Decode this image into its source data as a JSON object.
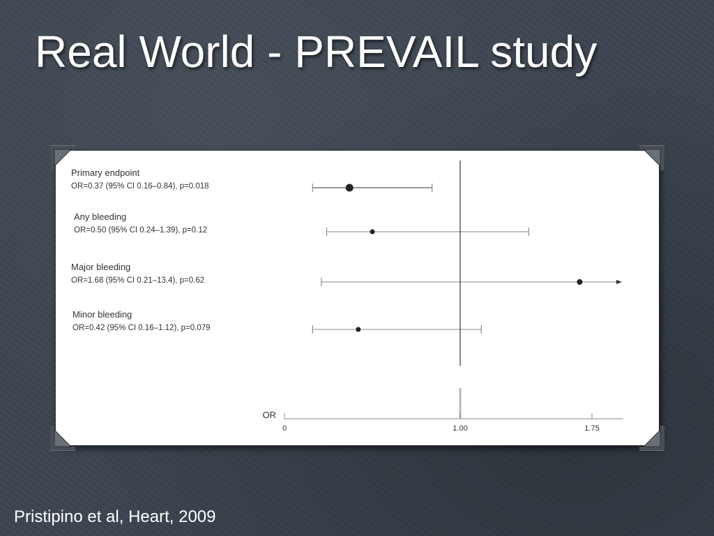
{
  "slide": {
    "title": "Real World - PREVAIL study",
    "caption": "Pristipino et al, Heart, 2009"
  },
  "colors": {
    "background": "#3c4550",
    "frame": "#ffffff",
    "ink": "#333333",
    "whisker": "#8a8a8a"
  },
  "chart_data": {
    "type": "scatter",
    "title": "",
    "xlabel": "OR",
    "ylabel": "",
    "xlim": [
      0,
      1.92
    ],
    "reference_line": 1.0,
    "ticks": [
      {
        "value": 0,
        "label": "0"
      },
      {
        "value": 1.0,
        "label": "1.00"
      },
      {
        "value": 1.75,
        "label": "1.75"
      }
    ],
    "rows": [
      {
        "label": "Primary endpoint",
        "stat": "OR=0.37 (95% CI 0.16–0.84), p=0.018",
        "or": 0.37,
        "ci_low": 0.16,
        "ci_high": 0.84,
        "truncated": false
      },
      {
        "label": "Any bleeding",
        "stat": "OR=0.50 (95% CI 0.24–1.39), p=0.12",
        "or": 0.5,
        "ci_low": 0.24,
        "ci_high": 1.39,
        "truncated": false
      },
      {
        "label": "Major bleeding",
        "stat": "OR=1.68 (95% CI 0.21–13.4), p=0.62",
        "or": 1.68,
        "ci_low": 0.21,
        "ci_high": 13.4,
        "truncated": true
      },
      {
        "label": "Minor bleeding",
        "stat": "OR=0.42 (95% CI 0.16–1.12), p=0.079",
        "or": 0.42,
        "ci_low": 0.16,
        "ci_high": 1.12,
        "truncated": false
      }
    ]
  }
}
